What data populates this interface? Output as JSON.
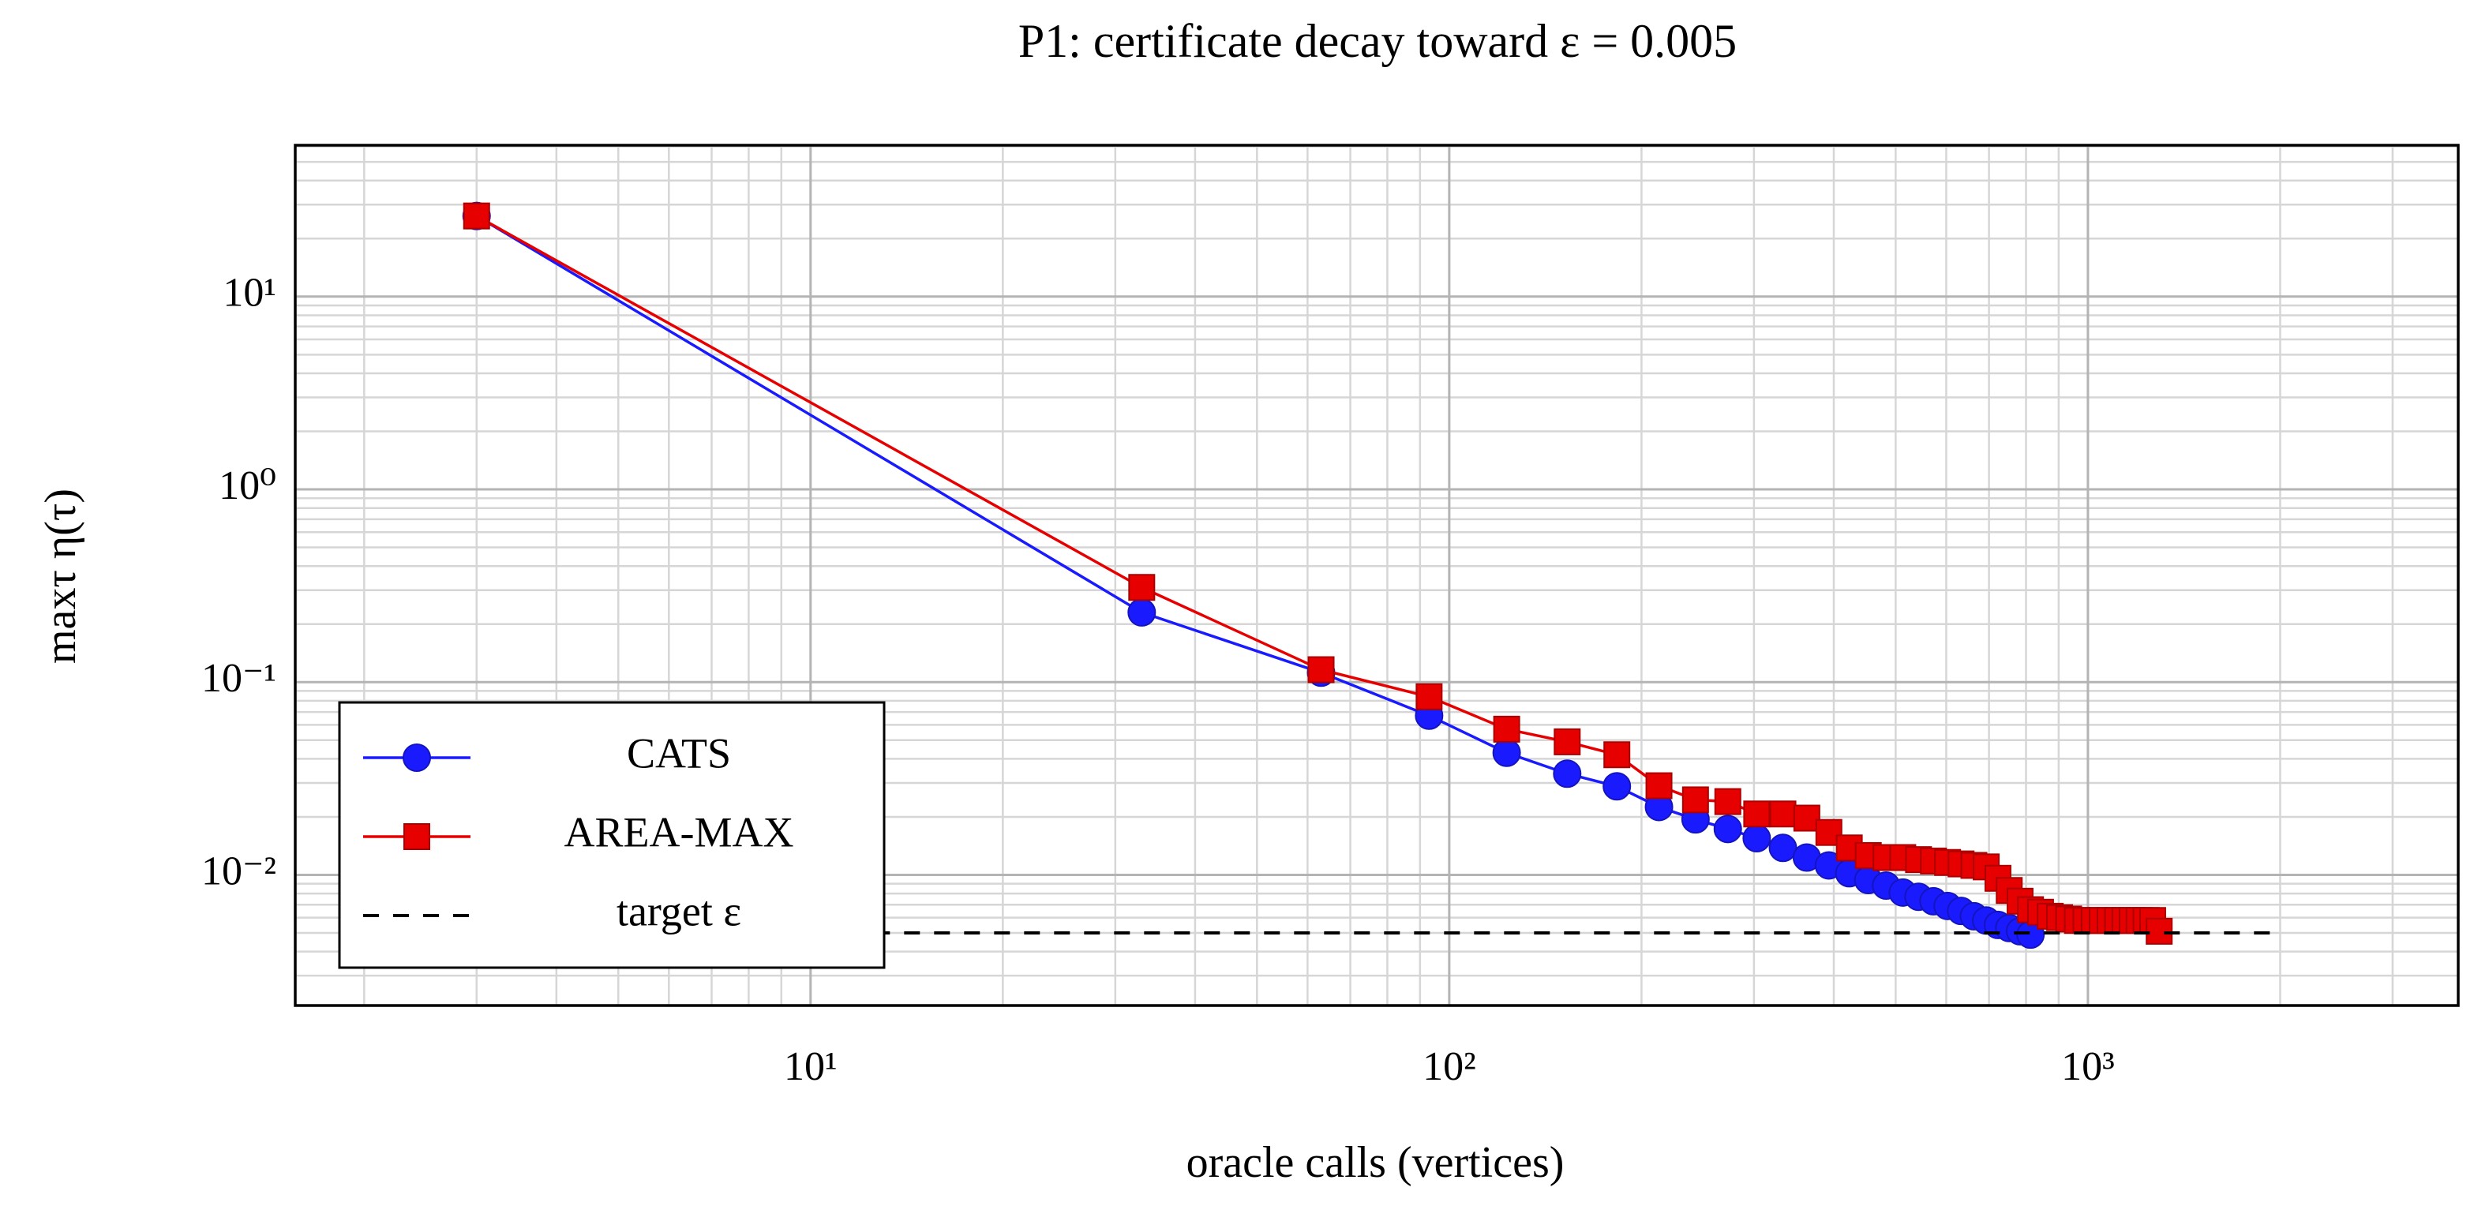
{
  "chart_data": {
    "type": "line",
    "title": "P1: certificate decay toward ε = 0.005",
    "xlabel": "oracle calls (vertices)",
    "ylabel": "maxτ η(τ)",
    "xlog": true,
    "ylog": true,
    "grid": true,
    "minor_grid": true,
    "legend_location": "lower left",
    "xlim": [
      1.56,
      3800
    ],
    "ylim": [
      0.0021,
      61
    ],
    "xticks": [
      {
        "value": 10,
        "label": "10¹"
      },
      {
        "value": 100,
        "label": "10²"
      },
      {
        "value": 1000,
        "label": "10³"
      }
    ],
    "yticks": [
      {
        "value": 0.01,
        "label": "10⁻²"
      },
      {
        "value": 0.1,
        "label": "10⁻¹"
      },
      {
        "value": 1,
        "label": "10⁰"
      },
      {
        "value": 10,
        "label": "10¹"
      }
    ],
    "series": [
      {
        "name": "CATS",
        "color": "#1a1aff",
        "marker": "circle",
        "x": [
          3,
          33,
          63,
          93,
          123,
          153,
          183,
          213,
          243,
          273,
          303,
          333,
          363,
          393,
          423,
          453,
          483,
          513,
          543,
          573,
          603,
          633,
          663,
          693,
          723,
          753,
          783,
          813
        ],
        "values": [
          26.2,
          0.23,
          0.112,
          0.067,
          0.043,
          0.0335,
          0.0288,
          0.0225,
          0.0194,
          0.0173,
          0.0155,
          0.0138,
          0.0123,
          0.0112,
          0.0102,
          0.0094,
          0.0088,
          0.0081,
          0.0077,
          0.0073,
          0.0069,
          0.0065,
          0.0061,
          0.0058,
          0.0055,
          0.0053,
          0.0051,
          0.0049
        ]
      },
      {
        "name": "AREA-MAX",
        "color": "#e60000",
        "marker": "square",
        "x": [
          3,
          33,
          63,
          93,
          123,
          153,
          183,
          213,
          243,
          273,
          303,
          333,
          363,
          393,
          423,
          453,
          483,
          513,
          543,
          573,
          603,
          633,
          663,
          693,
          723,
          753,
          783,
          813,
          843,
          873,
          903,
          933,
          963,
          993,
          1023,
          1053,
          1083,
          1113,
          1143,
          1173,
          1203,
          1233,
          1263,
          1293
        ],
        "values": [
          26.2,
          0.31,
          0.116,
          0.084,
          0.057,
          0.049,
          0.042,
          0.029,
          0.0245,
          0.024,
          0.0207,
          0.0207,
          0.0197,
          0.0166,
          0.0138,
          0.0126,
          0.0123,
          0.0123,
          0.012,
          0.0118,
          0.0116,
          0.0114,
          0.0112,
          0.011,
          0.0096,
          0.0083,
          0.0073,
          0.0066,
          0.0064,
          0.0061,
          0.006,
          0.0059,
          0.0058,
          0.0058,
          0.0058,
          0.0058,
          0.0058,
          0.0058,
          0.0058,
          0.0058,
          0.0058,
          0.0058,
          0.0058,
          0.0051
        ]
      },
      {
        "name": "target ε",
        "color": "#000000",
        "style": "dashed",
        "x": [
          2,
          2000
        ],
        "values": [
          0.005,
          0.005
        ]
      }
    ]
  }
}
